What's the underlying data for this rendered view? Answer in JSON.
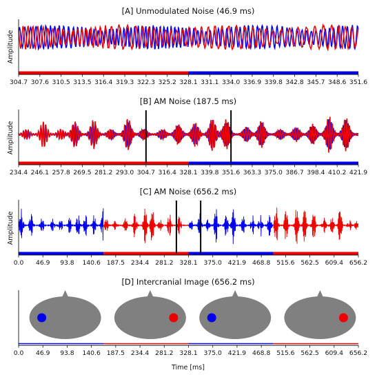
{
  "colors": {
    "left": "#0000ee",
    "right": "#ee0000",
    "head": "#808080",
    "marker": "#000000"
  },
  "chart_data": [
    {
      "id": "A",
      "type": "line",
      "title": "[A] Unmodulated Noise (46.9 ms)",
      "ylabel": "Amplitude",
      "xlabel": "",
      "xlim": [
        304.7,
        351.6
      ],
      "xticks": [
        "304.7",
        "307.6",
        "310.5",
        "313.5",
        "316.4",
        "319.3",
        "322.3",
        "325.2",
        "328.1",
        "331.1",
        "334.0",
        "336.9",
        "339.8",
        "342.8",
        "345.7",
        "348.6",
        "351.6"
      ],
      "series": [
        {
          "color": "blue",
          "signal": "unmodulated noise"
        },
        {
          "color": "red",
          "signal": "unmodulated noise"
        }
      ],
      "segments": [
        {
          "from": 304.7,
          "to": 328.1,
          "color": "red"
        },
        {
          "from": 328.1,
          "to": 351.6,
          "color": "blue"
        }
      ],
      "markers": []
    },
    {
      "id": "B",
      "type": "line",
      "title": "[B] AM Noise (187.5 ms)",
      "ylabel": "Amplitude",
      "xlabel": "",
      "xlim": [
        234.4,
        421.9
      ],
      "xticks": [
        "234.4",
        "246.1",
        "257.8",
        "269.5",
        "281.2",
        "293.0",
        "304.7",
        "316.4",
        "328.1",
        "339.8",
        "351.6",
        "363.3",
        "375.0",
        "386.7",
        "398.4",
        "410.2",
        "421.9"
      ],
      "series": [
        {
          "color": "blue",
          "signal": "AM noise"
        },
        {
          "color": "red",
          "signal": "AM noise"
        }
      ],
      "segments": [
        {
          "from": 234.4,
          "to": 328.1,
          "color": "red"
        },
        {
          "from": 328.1,
          "to": 421.9,
          "color": "blue"
        }
      ],
      "markers": [
        304.7,
        351.6
      ]
    },
    {
      "id": "C",
      "type": "line",
      "title": "[C] AM Noise (656.2 ms)",
      "ylabel": "Amplitude",
      "xlabel": "",
      "xlim": [
        0.0,
        656.2
      ],
      "xticks": [
        "0.0",
        "46.9",
        "93.8",
        "140.6",
        "187.5",
        "234.4",
        "281.2",
        "328.1",
        "375.0",
        "421.9",
        "468.8",
        "515.6",
        "562.5",
        "609.4",
        "656.2"
      ],
      "series": [
        {
          "color": "blue",
          "from": 0.0,
          "to": 164.1
        },
        {
          "color": "red",
          "from": 164.1,
          "to": 328.1
        },
        {
          "color": "blue",
          "from": 328.1,
          "to": 492.2
        },
        {
          "color": "red",
          "from": 492.2,
          "to": 656.2
        }
      ],
      "segments": [
        {
          "from": 0.0,
          "to": 164.1,
          "color": "blue"
        },
        {
          "from": 164.1,
          "to": 328.1,
          "color": "red"
        },
        {
          "from": 328.1,
          "to": 492.2,
          "color": "blue"
        },
        {
          "from": 492.2,
          "to": 656.2,
          "color": "red"
        }
      ],
      "markers": [
        304.7,
        351.6
      ]
    },
    {
      "id": "D",
      "type": "diagram",
      "title": "[D] Intercranial Image (656.2 ms)",
      "ylabel": "",
      "xlabel": "Time [ms]",
      "xlim": [
        0.0,
        656.2
      ],
      "xticks": [
        "0.0",
        "46.9",
        "93.8",
        "140.6",
        "187.5",
        "234.4",
        "281.2",
        "328.1",
        "375.0",
        "421.9",
        "468.8",
        "515.6",
        "562.5",
        "609.4",
        "656.2"
      ],
      "heads": [
        {
          "center": 82.0,
          "source": "left",
          "color": "blue"
        },
        {
          "center": 246.1,
          "source": "right",
          "color": "red"
        },
        {
          "center": 410.2,
          "source": "left",
          "color": "blue"
        },
        {
          "center": 574.2,
          "source": "right",
          "color": "red"
        }
      ],
      "segments": [
        {
          "from": 0.0,
          "to": 164.1,
          "color": "blue"
        },
        {
          "from": 164.1,
          "to": 328.1,
          "color": "red"
        },
        {
          "from": 328.1,
          "to": 492.2,
          "color": "blue"
        },
        {
          "from": 492.2,
          "to": 656.2,
          "color": "red"
        }
      ],
      "markers": []
    }
  ]
}
